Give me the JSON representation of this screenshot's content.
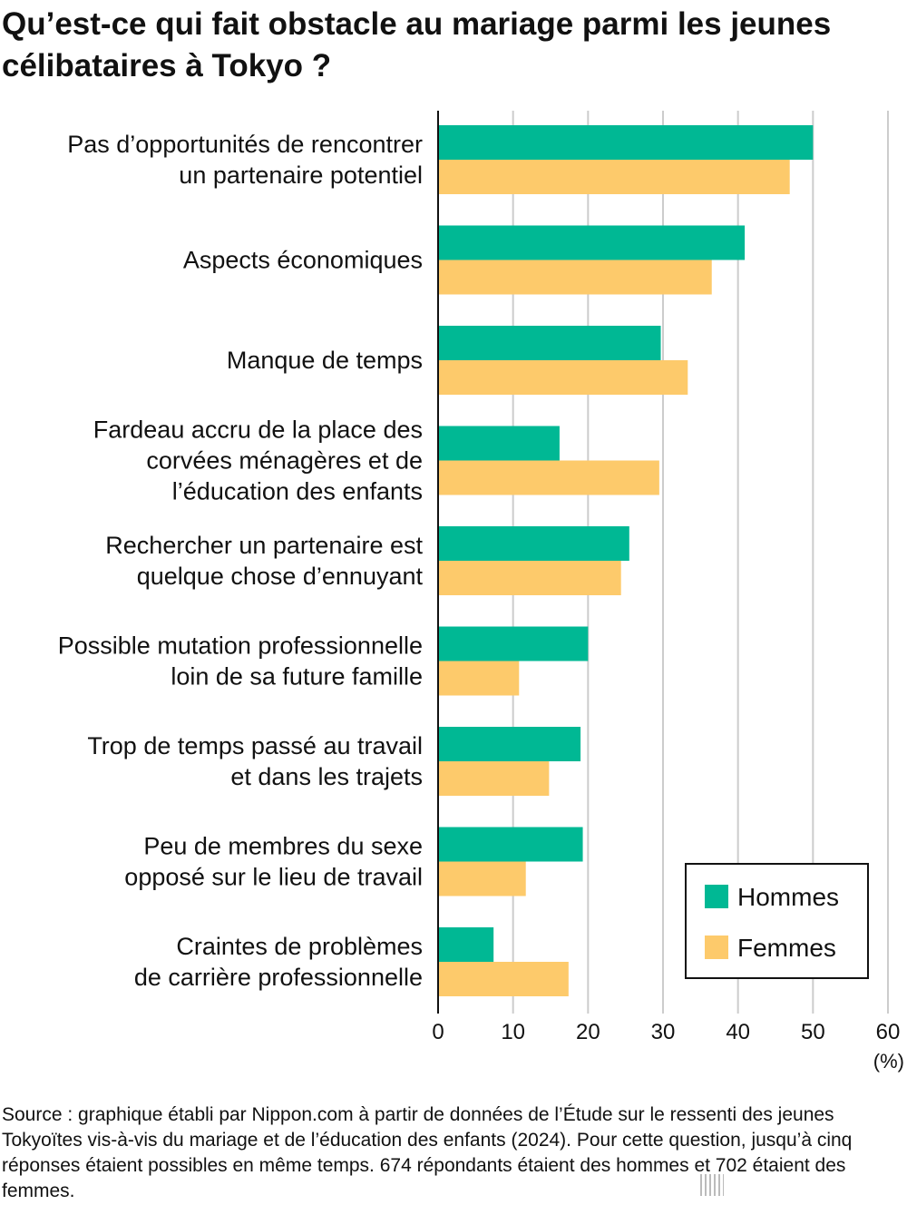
{
  "title": "Qu’est-ce qui fait obstacle au mariage parmi les jeunes célibataires à Tokyo ?",
  "chart_data": {
    "type": "bar",
    "orientation": "horizontal",
    "title": "Qu’est-ce qui fait obstacle au mariage parmi les jeunes célibataires à Tokyo ?",
    "categories": [
      [
        "Pas d’opportunités de rencontrer",
        "un partenaire potentiel"
      ],
      [
        "Aspects économiques"
      ],
      [
        "Manque de temps"
      ],
      [
        "Fardeau accru de la place des",
        "corvées ménagères et de",
        "l’éducation des enfants"
      ],
      [
        "Rechercher un partenaire est",
        "quelque chose d’ennuyant"
      ],
      [
        "Possible mutation professionnelle",
        "loin de sa future famille"
      ],
      [
        "Trop de temps passé au travail",
        "et dans les trajets"
      ],
      [
        "Peu de membres du sexe",
        "opposé sur le lieu de travail"
      ],
      [
        "Craintes de problèmes",
        "de carrière professionnelle"
      ]
    ],
    "series": [
      {
        "name": "Hommes",
        "color": "#00b894",
        "values": [
          50.0,
          40.9,
          29.7,
          16.2,
          25.5,
          20.0,
          19.0,
          19.3,
          7.4
        ]
      },
      {
        "name": "Femmes",
        "color": "#fdca6b",
        "values": [
          46.9,
          36.5,
          33.3,
          29.5,
          24.4,
          10.8,
          14.8,
          11.7,
          17.4
        ]
      }
    ],
    "xlim": [
      0,
      60
    ],
    "xticks": [
      "0",
      "10",
      "20",
      "30",
      "40",
      "50",
      "60"
    ],
    "xlabel": "(%)",
    "grid": true,
    "legend": "bottom-right"
  },
  "source": "Source : graphique établi par Nippon.com à partir de données de l’Étude sur le ressenti des jeunes Tokyoïtes vis-à-vis du mariage et de l’éducation des enfants (2024). Pour cette question, jusqu’à cinq réponses étaient possibles en même temps. 674 répondants étaient des hommes et 702 étaient des femmes.",
  "logo": {
    "main": "nippon",
    "dot": ".",
    "suffix": "com"
  }
}
